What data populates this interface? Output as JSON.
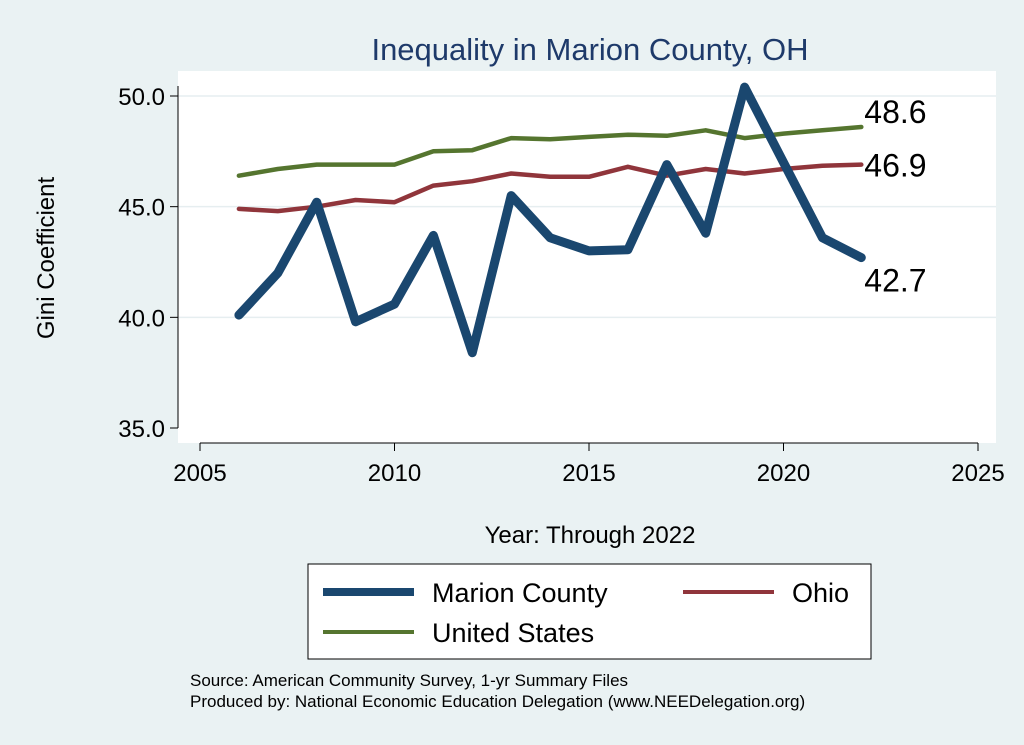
{
  "chart_data": {
    "type": "line",
    "title": "Inequality in Marion County, OH",
    "xlabel": "Year: Through 2022",
    "ylabel": "Gini Coefficient",
    "xlim": [
      2005,
      2025
    ],
    "ylim": [
      35,
      50
    ],
    "x_ticks": [
      "2005",
      "2010",
      "2015",
      "2020",
      "2025"
    ],
    "y_ticks": [
      "50.0",
      "45.0",
      "40.0",
      "35.0"
    ],
    "grid": true,
    "legend_position": "bottom",
    "x": [
      2006,
      2007,
      2008,
      2009,
      2010,
      2011,
      2012,
      2013,
      2014,
      2015,
      2016,
      2017,
      2018,
      2019,
      2020,
      2021,
      2022
    ],
    "series": [
      {
        "name": "Marion County",
        "color": "#1a476f",
        "values": [
          40.1,
          42.0,
          45.2,
          39.8,
          40.6,
          43.7,
          38.4,
          45.5,
          43.6,
          43.0,
          43.05,
          46.9,
          43.8,
          50.4,
          47.0,
          43.6,
          42.7
        ],
        "end_label": "42.7"
      },
      {
        "name": "Ohio",
        "color": "#90353b",
        "values": [
          44.9,
          44.8,
          45.0,
          45.3,
          45.2,
          45.95,
          46.15,
          46.5,
          46.35,
          46.35,
          46.8,
          46.4,
          46.7,
          46.5,
          46.7,
          46.85,
          46.9
        ],
        "end_label": "46.9"
      },
      {
        "name": "United States",
        "color": "#55752f",
        "values": [
          46.4,
          46.7,
          46.9,
          46.9,
          46.9,
          47.5,
          47.55,
          48.1,
          48.05,
          48.15,
          48.25,
          48.2,
          48.45,
          48.1,
          48.3,
          48.45,
          48.6
        ],
        "end_label": "48.6"
      }
    ],
    "notes": [
      "Source: American Community Survey, 1-yr Summary Files",
      "Produced by: National Economic Education Delegation (www.NEEDelegation.org)"
    ]
  }
}
